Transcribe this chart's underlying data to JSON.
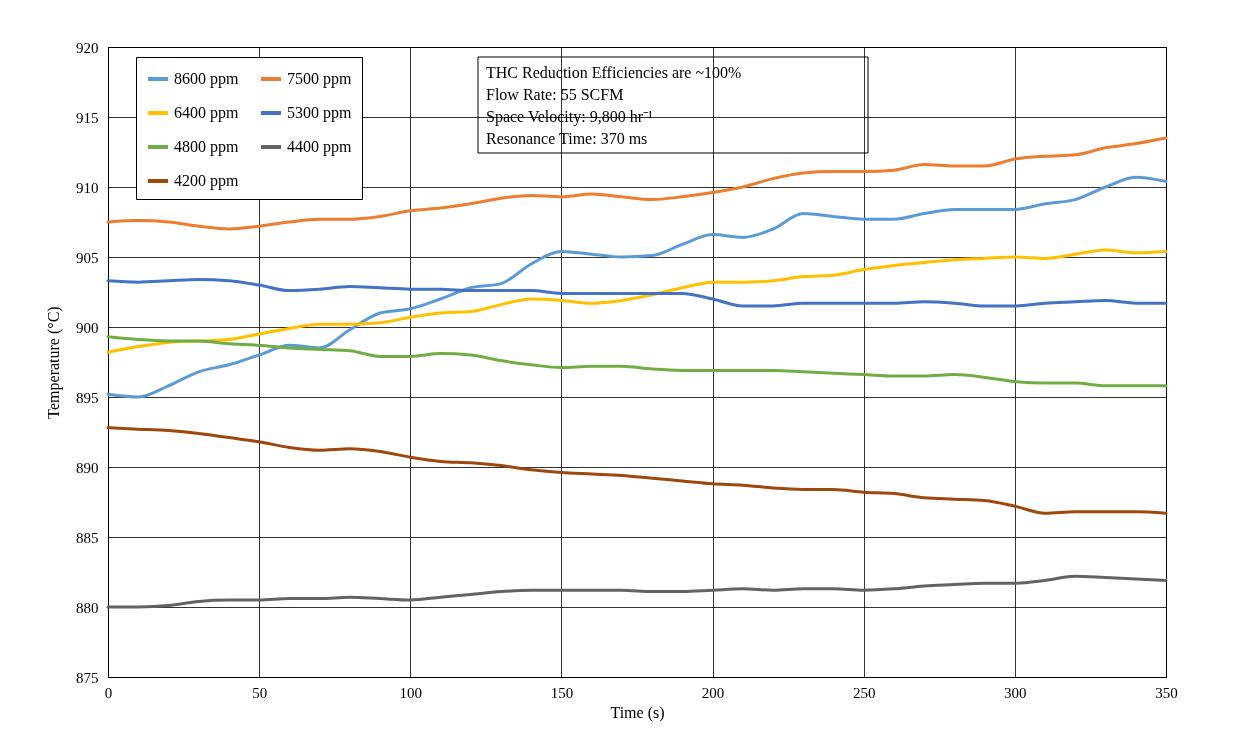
{
  "chart_data": {
    "type": "line",
    "xlabel": "Time (s)",
    "ylabel": "Temperature (°C)",
    "x": [
      0,
      10,
      20,
      30,
      40,
      50,
      60,
      70,
      80,
      90,
      100,
      110,
      120,
      130,
      140,
      150,
      160,
      170,
      180,
      190,
      200,
      210,
      220,
      230,
      240,
      250,
      260,
      270,
      280,
      290,
      300,
      310,
      320,
      330,
      340,
      350
    ],
    "series": [
      {
        "name": "8600 ppm",
        "color": "#5b9bd5",
        "values": [
          895.2,
          895.0,
          895.8,
          896.8,
          897.3,
          898.0,
          898.7,
          898.5,
          899.8,
          901.0,
          901.3,
          902.0,
          902.8,
          903.1,
          904.5,
          905.4,
          905.2,
          905.0,
          905.1,
          905.9,
          906.6,
          906.4,
          907.0,
          908.1,
          907.9,
          907.7,
          907.7,
          908.1,
          908.4,
          908.4,
          908.4,
          908.8,
          909.1,
          910.0,
          910.7,
          910.4
        ]
      },
      {
        "name": "7500 ppm",
        "color": "#ed7d31",
        "values": [
          907.5,
          907.6,
          907.5,
          907.2,
          907.0,
          907.2,
          907.5,
          907.7,
          907.7,
          907.9,
          908.3,
          908.5,
          908.8,
          909.2,
          909.4,
          909.3,
          909.5,
          909.3,
          909.1,
          909.3,
          909.6,
          910.0,
          910.6,
          911.0,
          911.1,
          911.1,
          911.2,
          911.6,
          911.5,
          911.5,
          912.0,
          912.2,
          912.3,
          912.8,
          913.1,
          913.5
        ]
      },
      {
        "name": "6400 ppm",
        "color": "#ffc000",
        "values": [
          898.2,
          898.6,
          898.9,
          899.0,
          899.1,
          899.5,
          899.9,
          900.2,
          900.2,
          900.3,
          900.7,
          901.0,
          901.1,
          901.6,
          902.0,
          901.9,
          901.7,
          901.9,
          902.3,
          902.8,
          903.2,
          903.2,
          903.3,
          903.6,
          903.7,
          904.1,
          904.4,
          904.6,
          904.8,
          904.9,
          905.0,
          904.9,
          905.2,
          905.5,
          905.3,
          905.4
        ]
      },
      {
        "name": "5300 ppm",
        "color": "#4472c4",
        "values": [
          903.3,
          903.2,
          903.3,
          903.4,
          903.3,
          903.0,
          902.6,
          902.7,
          902.9,
          902.8,
          902.7,
          902.7,
          902.6,
          902.6,
          902.6,
          902.4,
          902.4,
          902.4,
          902.4,
          902.4,
          902.0,
          901.5,
          901.5,
          901.7,
          901.7,
          901.7,
          901.7,
          901.8,
          901.7,
          901.5,
          901.5,
          901.7,
          901.8,
          901.9,
          901.7,
          901.7
        ]
      },
      {
        "name": "4800 ppm",
        "color": "#70ad47",
        "values": [
          899.3,
          899.1,
          899.0,
          899.0,
          898.8,
          898.7,
          898.5,
          898.4,
          898.3,
          897.9,
          897.9,
          898.1,
          898.0,
          897.6,
          897.3,
          897.1,
          897.2,
          897.2,
          897.0,
          896.9,
          896.9,
          896.9,
          896.9,
          896.8,
          896.7,
          896.6,
          896.5,
          896.5,
          896.6,
          896.4,
          896.1,
          896.0,
          896.0,
          895.8,
          895.8,
          895.8
        ]
      },
      {
        "name": "4400 ppm",
        "color": "#636363",
        "values": [
          880.0,
          880.0,
          880.1,
          880.4,
          880.5,
          880.5,
          880.6,
          880.6,
          880.7,
          880.6,
          880.5,
          880.7,
          880.9,
          881.1,
          881.2,
          881.2,
          881.2,
          881.2,
          881.1,
          881.1,
          881.2,
          881.3,
          881.2,
          881.3,
          881.3,
          881.2,
          881.3,
          881.5,
          881.6,
          881.7,
          881.7,
          881.9,
          882.2,
          882.1,
          882.0,
          881.9
        ]
      },
      {
        "name": "4200 ppm",
        "color": "#9e480e",
        "values": [
          892.8,
          892.7,
          892.6,
          892.4,
          892.1,
          891.8,
          891.4,
          891.2,
          891.3,
          891.1,
          890.7,
          890.4,
          890.3,
          890.1,
          889.8,
          889.6,
          889.5,
          889.4,
          889.2,
          889.0,
          888.8,
          888.7,
          888.5,
          888.4,
          888.4,
          888.2,
          888.1,
          887.8,
          887.7,
          887.6,
          887.2,
          886.7,
          886.8,
          886.8,
          886.8,
          886.7
        ]
      }
    ],
    "xlim": [
      0,
      350
    ],
    "xticks": [
      0,
      50,
      100,
      150,
      200,
      250,
      300,
      350
    ],
    "ylim": [
      875,
      920
    ],
    "yticks": [
      875,
      880,
      885,
      890,
      895,
      900,
      905,
      910,
      915,
      920
    ],
    "grid": true,
    "legend": "top left",
    "marker": "none",
    "line_style": "solid",
    "annotations": [
      "THC Reduction Efficiencies are ~100%",
      "Flow Rate: 55 SCFM",
      "Space Velocity: 9,800 hr⁻¹",
      "Resonance Time: 370 ms"
    ]
  }
}
